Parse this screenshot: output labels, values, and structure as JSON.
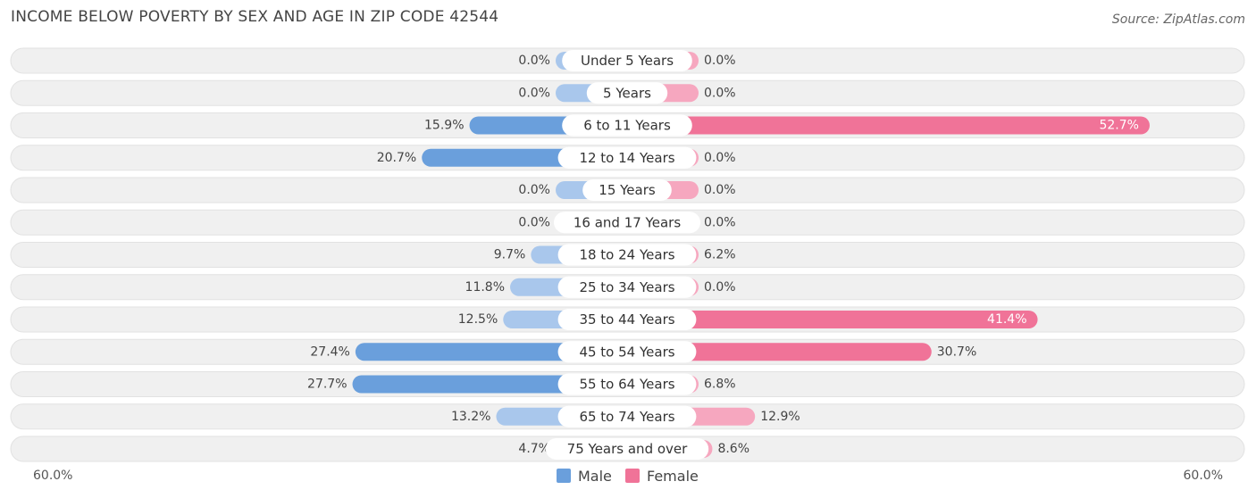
{
  "title": "INCOME BELOW POVERTY BY SEX AND AGE IN ZIP CODE 42544",
  "source": "Source: ZipAtlas.com",
  "colors": {
    "male_strong": "#6a9fdc",
    "male_light": "#a9c7ec",
    "female_strong": "#f07398",
    "female_light": "#f6a7bf",
    "track": "#f0f0f0"
  },
  "chart_data": {
    "type": "bar",
    "orientation": "horizontal-diverging",
    "categories": [
      "Under 5 Years",
      "5 Years",
      "6 to 11 Years",
      "12 to 14 Years",
      "15 Years",
      "16 and 17 Years",
      "18 to 24 Years",
      "25 to 34 Years",
      "35 to 44 Years",
      "45 to 54 Years",
      "55 to 64 Years",
      "65 to 74 Years",
      "75 Years and over"
    ],
    "series": [
      {
        "name": "Male",
        "values": [
          0.0,
          0.0,
          15.9,
          20.7,
          0.0,
          0.0,
          9.7,
          11.8,
          12.5,
          27.4,
          27.7,
          13.2,
          4.7
        ],
        "labels": [
          "0.0%",
          "0.0%",
          "15.9%",
          "20.7%",
          "0.0%",
          "0.0%",
          "9.7%",
          "11.8%",
          "12.5%",
          "27.4%",
          "27.7%",
          "13.2%",
          "4.7%"
        ]
      },
      {
        "name": "Female",
        "values": [
          0.0,
          0.0,
          52.7,
          0.0,
          0.0,
          0.0,
          6.2,
          0.0,
          41.4,
          30.7,
          6.8,
          12.9,
          8.6
        ],
        "labels": [
          "0.0%",
          "0.0%",
          "52.7%",
          "0.0%",
          "0.0%",
          "0.0%",
          "6.2%",
          "0.0%",
          "41.4%",
          "30.7%",
          "6.8%",
          "12.9%",
          "8.6%"
        ]
      }
    ],
    "xlim": [
      -60,
      60
    ],
    "axis_min_label": "60.0%",
    "axis_max_label": "60.0%",
    "legend_position": "bottom-center"
  }
}
